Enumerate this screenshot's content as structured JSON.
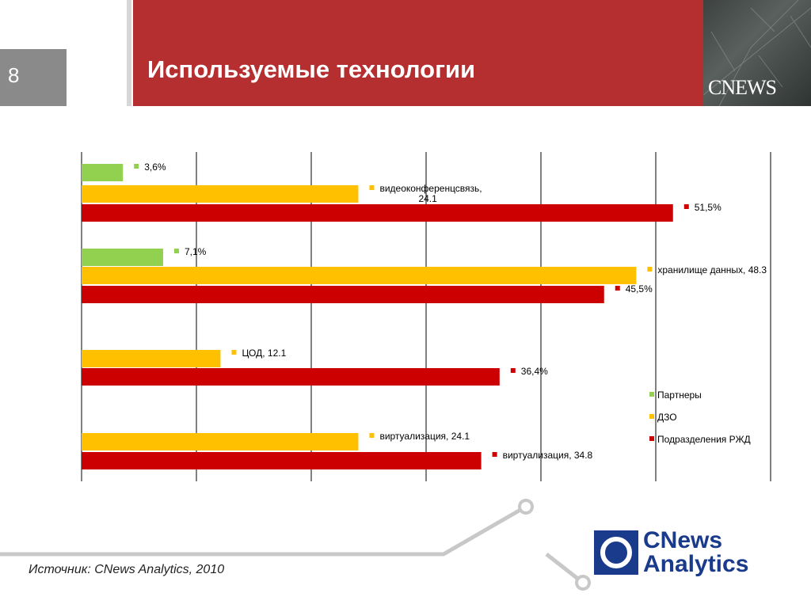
{
  "page_number": "8",
  "title": "Используемые технологии",
  "header_logo": "CNEWS",
  "source": "Источник: CNews Analytics, 2010",
  "footer_logo": {
    "line1": "CNews",
    "line2": "Analytics"
  },
  "colors": {
    "partners": "#92d050",
    "dzo": "#ffc000",
    "rzd": "#cc0000",
    "header": "#b52e30"
  },
  "chart_data": {
    "type": "bar",
    "orientation": "horizontal",
    "xlim": [
      0,
      60
    ],
    "grid": true,
    "legend_position": "right",
    "series": [
      {
        "name": "Партнеры",
        "color": "#92d050"
      },
      {
        "name": "ДЗО",
        "color": "#ffc000"
      },
      {
        "name": "Подразделения РЖД",
        "color": "#cc0000"
      }
    ],
    "groups": [
      {
        "bars": [
          {
            "series": 0,
            "value": 3.6,
            "label": "3,6%"
          },
          {
            "series": 1,
            "value": 24.1,
            "label": "видеоконференцсвязь, 24.1"
          },
          {
            "series": 2,
            "value": 51.5,
            "label": "51,5%"
          }
        ]
      },
      {
        "bars": [
          {
            "series": 0,
            "value": 7.1,
            "label": "7,1%"
          },
          {
            "series": 1,
            "value": 48.3,
            "label": "хранилище данных, 48.3"
          },
          {
            "series": 2,
            "value": 45.5,
            "label": "45,5%"
          }
        ]
      },
      {
        "bars": [
          {
            "series": 1,
            "value": 12.1,
            "label": "ЦОД, 12.1"
          },
          {
            "series": 2,
            "value": 36.4,
            "label": "36,4%"
          }
        ]
      },
      {
        "bars": [
          {
            "series": 1,
            "value": 24.1,
            "label": "виртуализация, 24.1"
          },
          {
            "series": 2,
            "value": 34.8,
            "label": "виртуализация, 34.8"
          }
        ]
      }
    ]
  }
}
